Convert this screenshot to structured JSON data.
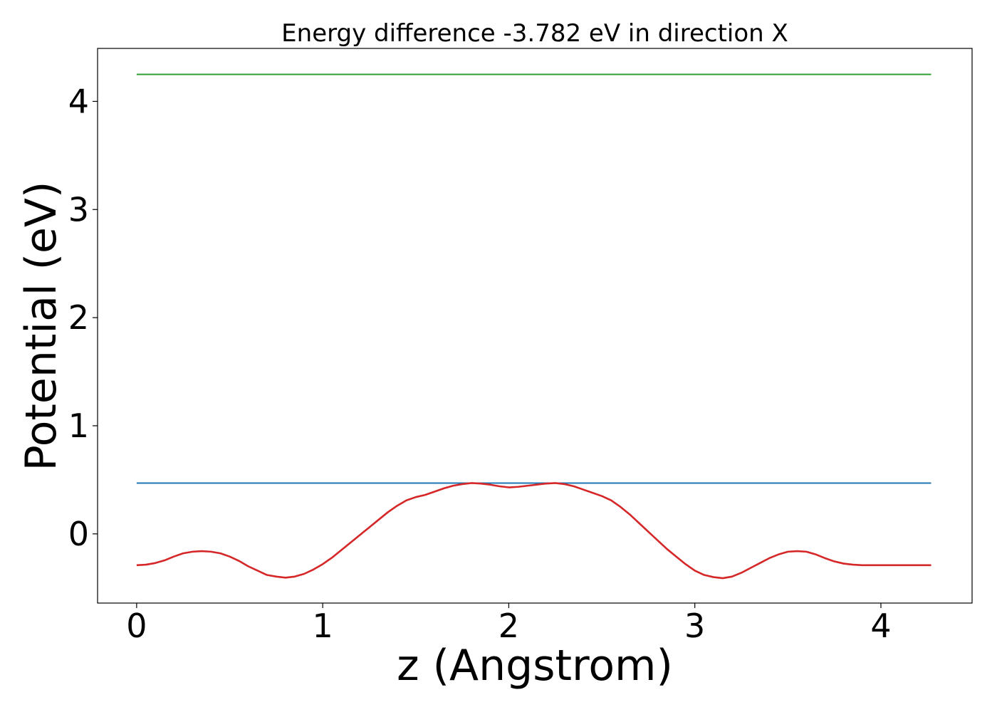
{
  "chart_data": {
    "type": "line",
    "title": "Energy difference -3.782 eV in direction X",
    "xlabel": "z (Angstrom)",
    "ylabel": "Potential (eV)",
    "xlim": [
      -0.21,
      4.49
    ],
    "ylim": [
      -0.64,
      4.49
    ],
    "xticks": [
      0,
      1,
      2,
      3,
      4
    ],
    "xtick_labels": [
      "0",
      "1",
      "2",
      "3",
      "4"
    ],
    "yticks": [
      0,
      1,
      2,
      3,
      4
    ],
    "ytick_labels": [
      "0",
      "1",
      "2",
      "3",
      "4"
    ],
    "grid": false,
    "series": [
      {
        "color": "#2ca02c",
        "x": [
          0,
          4.27
        ],
        "y": [
          4.25,
          4.25
        ]
      },
      {
        "color": "#1f77b4",
        "x": [
          0,
          4.27
        ],
        "y": [
          0.47,
          0.47
        ]
      },
      {
        "color": "#d62728",
        "x": [
          0,
          0.05,
          0.1,
          0.15,
          0.2,
          0.25,
          0.3,
          0.35,
          0.4,
          0.45,
          0.5,
          0.55,
          0.6,
          0.65,
          0.7,
          0.75,
          0.8,
          0.85,
          0.9,
          0.95,
          1.0,
          1.05,
          1.1,
          1.15,
          1.2,
          1.25,
          1.3,
          1.35,
          1.4,
          1.45,
          1.5,
          1.55,
          1.6,
          1.65,
          1.7,
          1.75,
          1.8,
          1.85,
          1.9,
          1.95,
          2.0,
          2.05,
          2.1,
          2.15,
          2.2,
          2.25,
          2.3,
          2.35,
          2.4,
          2.45,
          2.5,
          2.55,
          2.6,
          2.65,
          2.7,
          2.75,
          2.8,
          2.85,
          2.9,
          2.95,
          3.0,
          3.05,
          3.1,
          3.15,
          3.2,
          3.25,
          3.3,
          3.35,
          3.4,
          3.45,
          3.5,
          3.55,
          3.6,
          3.65,
          3.7,
          3.75,
          3.8,
          3.85,
          3.9,
          3.95,
          4.0,
          4.05,
          4.1,
          4.15,
          4.2,
          4.27
        ],
        "y": [
          -0.29,
          -0.285,
          -0.27,
          -0.245,
          -0.21,
          -0.18,
          -0.165,
          -0.16,
          -0.165,
          -0.18,
          -0.21,
          -0.25,
          -0.3,
          -0.34,
          -0.38,
          -0.395,
          -0.405,
          -0.395,
          -0.37,
          -0.33,
          -0.28,
          -0.22,
          -0.15,
          -0.08,
          -0.01,
          0.06,
          0.13,
          0.2,
          0.26,
          0.31,
          0.34,
          0.36,
          0.39,
          0.42,
          0.445,
          0.46,
          0.47,
          0.465,
          0.455,
          0.44,
          0.43,
          0.435,
          0.445,
          0.455,
          0.465,
          0.47,
          0.46,
          0.44,
          0.41,
          0.38,
          0.35,
          0.31,
          0.25,
          0.18,
          0.1,
          0.02,
          -0.06,
          -0.14,
          -0.21,
          -0.28,
          -0.34,
          -0.38,
          -0.4,
          -0.41,
          -0.395,
          -0.36,
          -0.315,
          -0.27,
          -0.225,
          -0.19,
          -0.165,
          -0.16,
          -0.165,
          -0.19,
          -0.225,
          -0.255,
          -0.275,
          -0.285,
          -0.29,
          -0.29,
          -0.29,
          -0.29,
          -0.29,
          -0.29,
          -0.29,
          -0.29
        ]
      }
    ]
  }
}
